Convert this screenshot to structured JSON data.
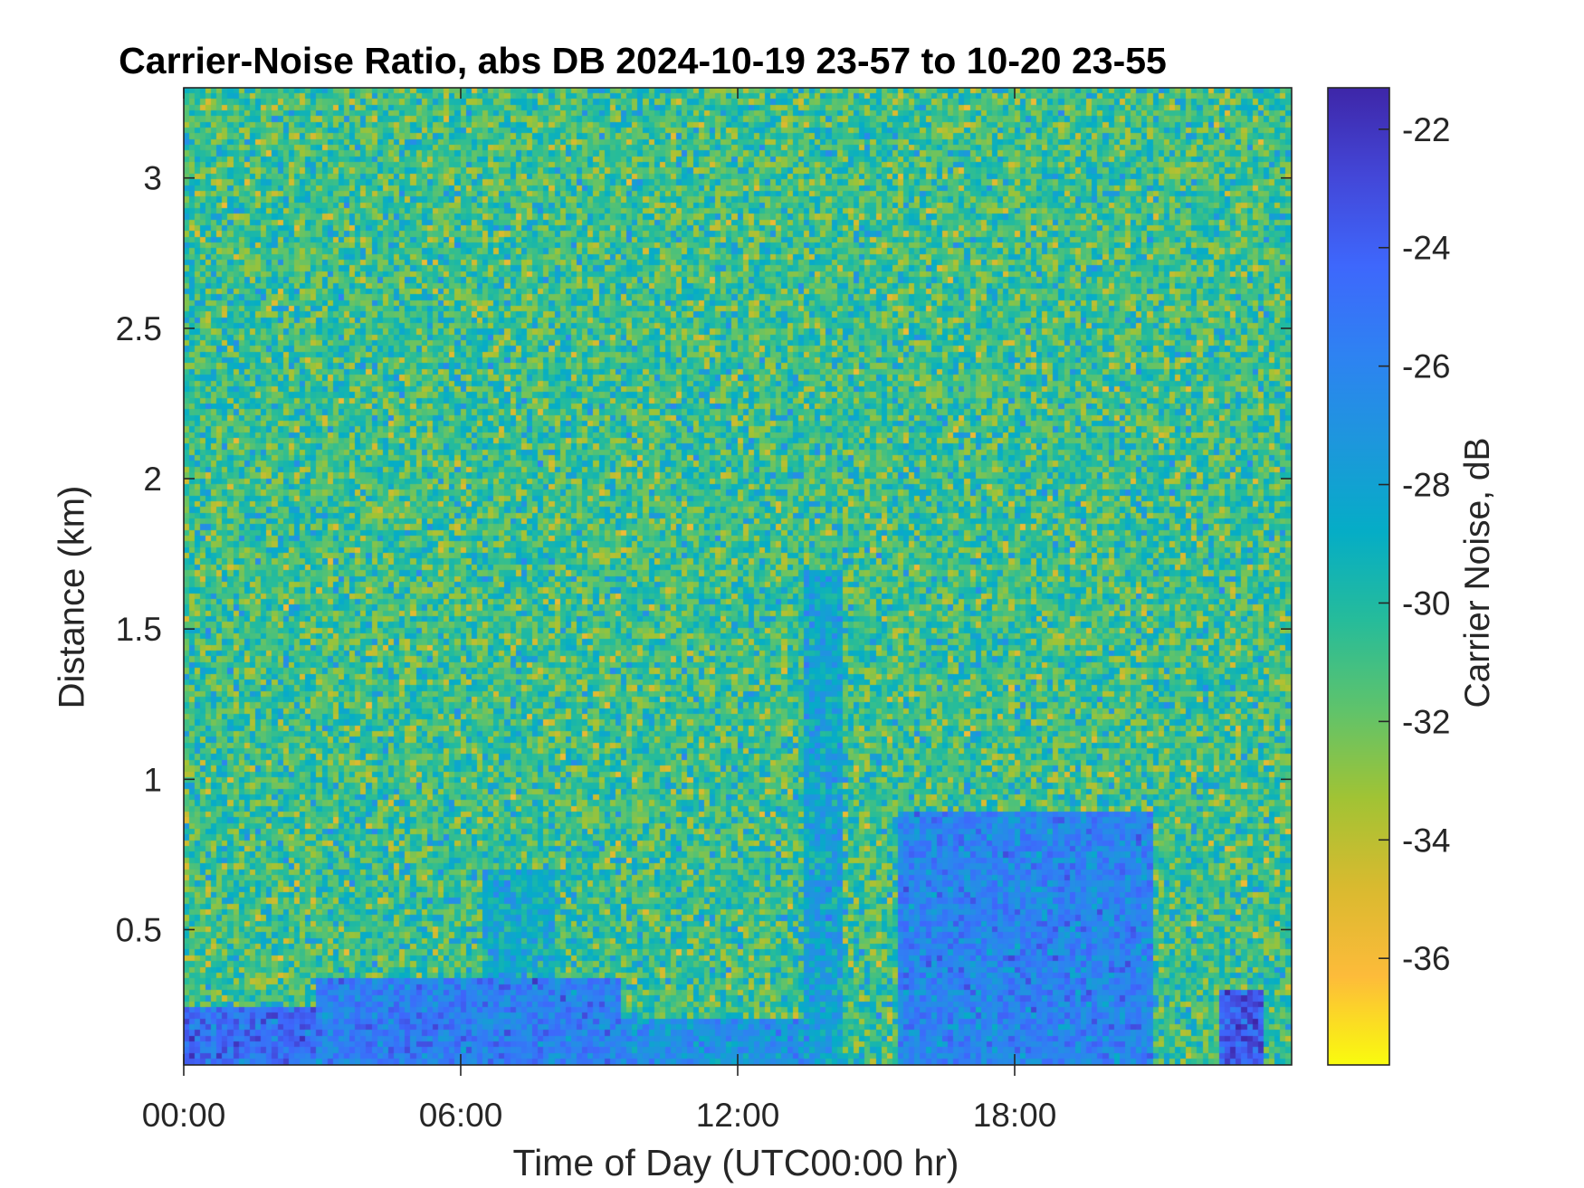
{
  "chart_data": {
    "type": "heatmap",
    "title": "Carrier-Noise Ratio, abs DB 2024-10-19 23-57 to 10-20 23-55",
    "xlabel": "Time of Day (UTC00:00 hr)",
    "ylabel": "Distance (km)",
    "colorbar_label": "Carrier Noise, dB",
    "x_unit": "hours",
    "xlim": [
      0,
      24
    ],
    "x_ticks": [
      0,
      6,
      12,
      18
    ],
    "x_tick_labels": [
      "00:00",
      "06:00",
      "12:00",
      "18:00"
    ],
    "ylim": [
      0.05,
      3.3
    ],
    "y_ticks": [
      0.5,
      1,
      1.5,
      2,
      2.5,
      3
    ],
    "y_tick_labels": [
      "0.5",
      "1",
      "1.5",
      "2",
      "2.5",
      "3"
    ],
    "clim": [
      -37.8,
      -21.3
    ],
    "colorbar_ticks": [
      -22,
      -24,
      -26,
      -28,
      -30,
      -32,
      -34,
      -36
    ],
    "colorbar_tick_labels": [
      "-22",
      "-24",
      "-26",
      "-28",
      "-30",
      "-32",
      "-34",
      "-36"
    ],
    "colormap": "parula",
    "colormap_stops": [
      "#f9fb0e",
      "#fdbb3a",
      "#d9ba2f",
      "#a1c334",
      "#5fc36b",
      "#26bc9a",
      "#05adc6",
      "#1d97dc",
      "#2e82f2",
      "#3e67fc",
      "#4347d8",
      "#3e26a8"
    ],
    "grid": false,
    "field_summary": {
      "background_mean_db": -30.8,
      "background_spread_db": 2.2,
      "features": [
        {
          "x_start": 0,
          "x_end": 2.9,
          "y_start": 0.05,
          "y_end": 0.25,
          "mean_db": -24.6
        },
        {
          "x_start": 2.9,
          "x_end": 9.5,
          "y_start": 0.05,
          "y_end": 0.33,
          "mean_db": -25.6
        },
        {
          "x_start": 9.5,
          "x_end": 13.5,
          "y_start": 0.05,
          "y_end": 0.2,
          "mean_db": -26.8
        },
        {
          "x_start": 13.5,
          "x_end": 14.3,
          "y_start": 0.05,
          "y_end": 1.7,
          "mean_db": -28.0
        },
        {
          "x_start": 15.5,
          "x_end": 21,
          "y_start": 0.05,
          "y_end": 0.9,
          "mean_db": -26.0
        },
        {
          "x_start": 22.5,
          "x_end": 23.4,
          "y_start": 0.05,
          "y_end": 0.3,
          "mean_db": -23.8
        },
        {
          "x_start": 6.5,
          "x_end": 8.0,
          "y_start": 0.3,
          "y_end": 0.7,
          "mean_db": -28.5
        }
      ]
    }
  }
}
